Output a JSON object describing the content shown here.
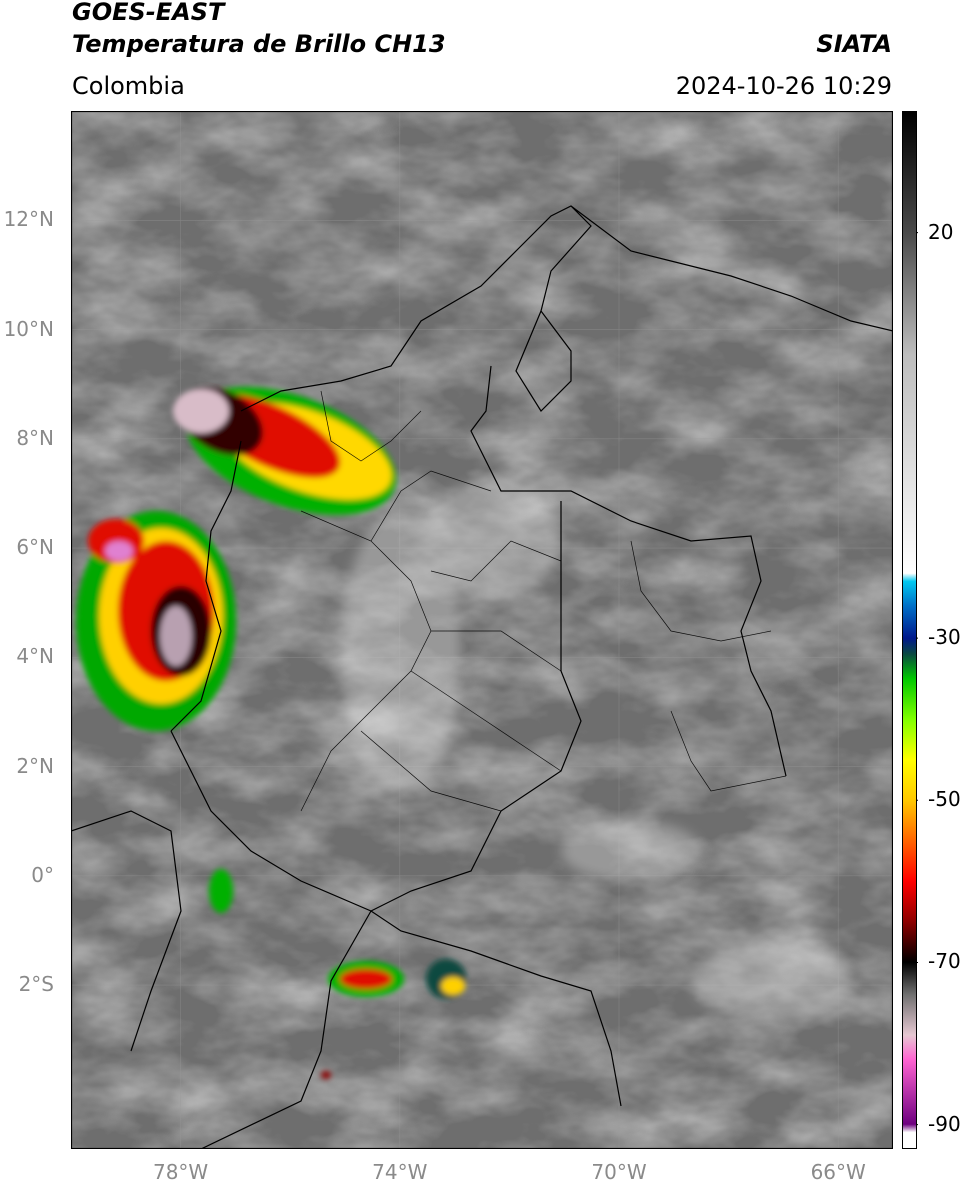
{
  "header": {
    "satellite": "GOES-EAST",
    "product": "Temperatura de Brillo CH13",
    "region": "Colombia",
    "source": "SIATA",
    "datetime": "2024-10-26 10:29"
  },
  "map": {
    "lat_labels": [
      "12°N",
      "10°N",
      "8°N",
      "6°N",
      "4°N",
      "2°N",
      "0°",
      "2°S"
    ],
    "lon_labels": [
      "78°W",
      "74°W",
      "70°W",
      "66°W"
    ],
    "lat_values": [
      12,
      10,
      8,
      6,
      4,
      2,
      0,
      -2
    ],
    "lon_values": [
      -78,
      -74,
      -70,
      -66
    ],
    "extent": {
      "lon_min": -80,
      "lon_max": -65,
      "lat_min": -5,
      "lat_max": 14
    },
    "background_color": "#6e6e6e"
  },
  "colorbar": {
    "tick_labels": [
      "20",
      "-30",
      "-50",
      "-70",
      "-90"
    ],
    "tick_values": [
      20,
      -30,
      -50,
      -70,
      -90
    ],
    "range": [
      -93,
      35
    ],
    "color_stops": [
      {
        "v": 35,
        "c": "#000000"
      },
      {
        "v": 20,
        "c": "#4a4a4a"
      },
      {
        "v": 5,
        "c": "#bdbdbd"
      },
      {
        "v": -22,
        "c": "#ffffff"
      },
      {
        "v": -23,
        "c": "#00c8f0"
      },
      {
        "v": -26,
        "c": "#0070c8"
      },
      {
        "v": -30,
        "c": "#00188c"
      },
      {
        "v": -32,
        "c": "#0a4a40"
      },
      {
        "v": -35,
        "c": "#00c800"
      },
      {
        "v": -40,
        "c": "#80ff00"
      },
      {
        "v": -45,
        "c": "#ffff00"
      },
      {
        "v": -50,
        "c": "#ffc800"
      },
      {
        "v": -55,
        "c": "#ff6400"
      },
      {
        "v": -60,
        "c": "#ff0000"
      },
      {
        "v": -65,
        "c": "#8c0000"
      },
      {
        "v": -70,
        "c": "#000000"
      },
      {
        "v": -74,
        "c": "#707070"
      },
      {
        "v": -79,
        "c": "#e6c8d2"
      },
      {
        "v": -82,
        "c": "#ff64d2"
      },
      {
        "v": -90,
        "c": "#6e0080"
      },
      {
        "v": -91,
        "c": "#ffffff"
      }
    ]
  }
}
